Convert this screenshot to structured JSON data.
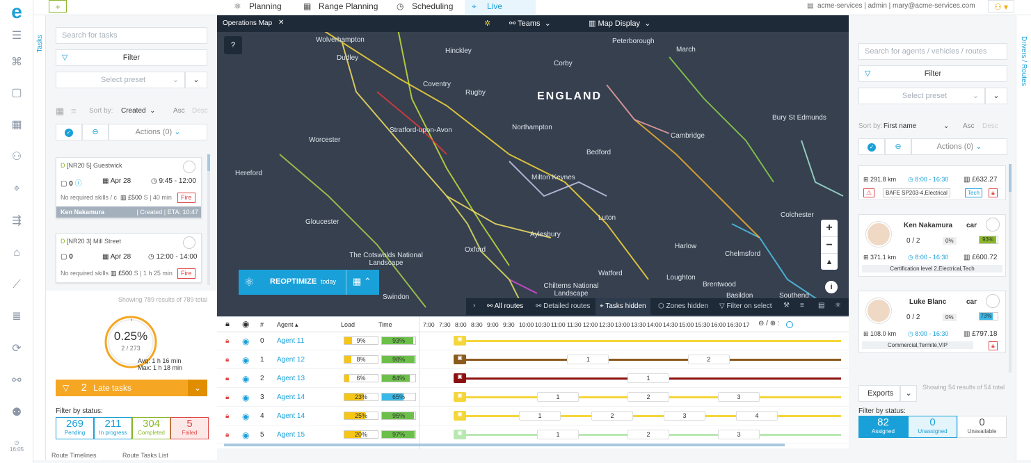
{
  "top_tabs": [
    {
      "label": "Planning"
    },
    {
      "label": "Range Planning"
    },
    {
      "label": "Scheduling"
    },
    {
      "label": "Live"
    }
  ],
  "user": {
    "org": "acme-services",
    "role": "admin",
    "email": "mary@acme-services.com"
  },
  "left_vertical_tab": "Tasks",
  "right_vertical_tab": "Drivers / Routes",
  "clock": "16:05",
  "left": {
    "search_placeholder": "Search for tasks",
    "filter_label": "Filter",
    "preset_placeholder": "Select preset",
    "sort_by_label": "Sort by:",
    "sort_value": "Created",
    "asc": "Asc",
    "desc": "Desc",
    "actions_label": "Actions (0)",
    "tasks": [
      {
        "id": "[NR20 5] Guestwick",
        "count": "0",
        "date": "Apr 28",
        "time": "9:45 - 12:00",
        "skills": "No required skills / c",
        "price": "£500",
        "duration": "S | 40 min",
        "badge": "Fire",
        "agent": "Ken Nakamura",
        "status": "| Created | ETA: 10:47"
      },
      {
        "id": "[NR20 3] Mill Street",
        "count": "0",
        "date": "Apr 28",
        "time": "12:00 - 14:00",
        "skills": "No required skills",
        "price": "£500",
        "duration": "S | 1 h 25 min",
        "badge": "Fire"
      }
    ],
    "showing": "Showing 789 results of 789 total",
    "gauge_value": "0.25%",
    "gauge_sub": "2 / 273",
    "gauge_fill": 0.25,
    "avg": "Avg: 1 h 16 min",
    "max": "Max: 1 h 18 min",
    "late_count": "2",
    "late_label": "Late tasks",
    "filter_by_status": "Filter by status:",
    "status": [
      {
        "n": "269",
        "l": "Pending",
        "c": "#1aa0d8"
      },
      {
        "n": "211",
        "l": "In progress",
        "c": "#1aa0d8"
      },
      {
        "n": "304",
        "l": "Completed",
        "c": "#8ab829"
      },
      {
        "n": "5",
        "l": "Failed",
        "c": "#e04848"
      }
    ],
    "bottom_tabs": [
      "Route Timelines",
      "Route Tasks List"
    ]
  },
  "map": {
    "tab_label": "Operations Map",
    "teams_label": "Teams",
    "display_label": "Map Display",
    "country": "ENGLAND",
    "places": [
      {
        "n": "Wolverhampton"
      },
      {
        "n": "Dudley"
      },
      {
        "n": "Hinckley"
      },
      {
        "n": "Peterborough"
      },
      {
        "n": "March"
      },
      {
        "n": "Corby"
      },
      {
        "n": "Coventry"
      },
      {
        "n": "Rugby"
      },
      {
        "n": "Stratford-upon-Avon"
      },
      {
        "n": "Northampton"
      },
      {
        "n": "Bury St Edmunds"
      },
      {
        "n": "Worcester"
      },
      {
        "n": "Bedford"
      },
      {
        "n": "Cambridge"
      },
      {
        "n": "Hereford"
      },
      {
        "n": "Milton Keynes"
      },
      {
        "n": "Luton"
      },
      {
        "n": "Gloucester"
      },
      {
        "n": "Aylesbury"
      },
      {
        "n": "Harlow"
      },
      {
        "n": "Colchester"
      },
      {
        "n": "Chelmsford"
      },
      {
        "n": "The Cotswolds National Landscape"
      },
      {
        "n": "Oxford"
      },
      {
        "n": "Watford"
      },
      {
        "n": "Chilterns National Landscape"
      },
      {
        "n": "Loughton"
      },
      {
        "n": "Brentwood"
      },
      {
        "n": "Basildon"
      },
      {
        "n": "Southend"
      },
      {
        "n": "Swindon"
      }
    ],
    "reoptimize_label": "REOPTIMIZE",
    "reoptimize_when": "today",
    "route_bar": [
      "All routes",
      "Detailed routes",
      "Tasks hidden",
      "Zones hidden",
      "Filter on select"
    ]
  },
  "timeline": {
    "headers": {
      "hash": "#",
      "agent": "Agent ▴",
      "load": "Load",
      "time": "Time"
    },
    "hours": [
      "7:00",
      "7:30",
      "8:00",
      "8:30",
      "9:00",
      "9:30",
      "10:00",
      "10:30",
      "11:00",
      "11:30",
      "12:00",
      "12:30",
      "13:00",
      "13:30",
      "14:00",
      "14:30",
      "15:00",
      "15:30",
      "16:00",
      "16:30",
      "17"
    ],
    "rows": [
      {
        "idx": "0",
        "agent": "Agent 11",
        "load": "9%",
        "time": "93%",
        "lf": 0.09,
        "tf": 0.93,
        "color": "#f5d63a",
        "boxes": []
      },
      {
        "idx": "1",
        "agent": "Agent 12",
        "load": "8%",
        "time": "98%",
        "lf": 0.08,
        "tf": 0.98,
        "color": "#8b5a1e",
        "boxes": [
          "1",
          "2"
        ]
      },
      {
        "idx": "2",
        "agent": "Agent 13",
        "load": "6%",
        "time": "84%",
        "lf": 0.06,
        "tf": 0.84,
        "color": "#8b1010",
        "boxes": [
          "1"
        ]
      },
      {
        "idx": "3",
        "agent": "Agent 14",
        "load": "23%",
        "time": "65%",
        "lf": 0.23,
        "tf": 0.65,
        "color": "#f5d63a",
        "boxes": [
          "1",
          "2",
          "3"
        ]
      },
      {
        "idx": "4",
        "agent": "Agent 14",
        "load": "25%",
        "time": "95%",
        "lf": 0.25,
        "tf": 0.95,
        "color": "#f5d63a",
        "boxes": [
          "1",
          "2",
          "3",
          "4"
        ]
      },
      {
        "idx": "5",
        "agent": "Agent 15",
        "load": "20%",
        "time": "97%",
        "lf": 0.2,
        "tf": 0.97,
        "color": "#b8e8b0",
        "boxes": [
          "1",
          "2",
          "3"
        ]
      }
    ]
  },
  "right": {
    "search_placeholder": "Search for agents / vehicles / routes",
    "filter_label": "Filter",
    "preset_placeholder": "Select preset",
    "sort_by_label": "Sort by:",
    "sort_value": "First name",
    "asc": "Asc",
    "desc": "Desc",
    "actions_label": "Actions (0)",
    "agents": [
      {
        "name": "",
        "vehicle": "",
        "ratio": "",
        "pct": "",
        "km": "291.8 km",
        "hours": "8:00 - 16:30",
        "money": "£632.27",
        "skills": "BAFE SP203-4,Electrical",
        "tag": "Tech"
      },
      {
        "name": "Ken Nakamura",
        "vehicle": "car",
        "ratio": "0 / 2",
        "zero": "0%",
        "pct": "93%",
        "km": "371.1 km",
        "hours": "8:00 - 16:30",
        "money": "£600.72",
        "skills": "Certification level 2,Electrical,Tech"
      },
      {
        "name": "Luke Blanc",
        "vehicle": "car",
        "ratio": "0 / 2",
        "zero": "0%",
        "pct": "73%",
        "km": "108.0 km",
        "hours": "8:00 - 16:30",
        "money": "£797.18",
        "skills": "Commercial,Termite,VIP"
      }
    ],
    "exports_label": "Exports",
    "showing": "Showing 54 results of 54 total",
    "filter_by_status": "Filter by status:",
    "status": [
      {
        "n": "82",
        "l": "Assigned"
      },
      {
        "n": "0",
        "l": "Unassigned"
      },
      {
        "n": "0",
        "l": "Unavailable"
      }
    ]
  }
}
